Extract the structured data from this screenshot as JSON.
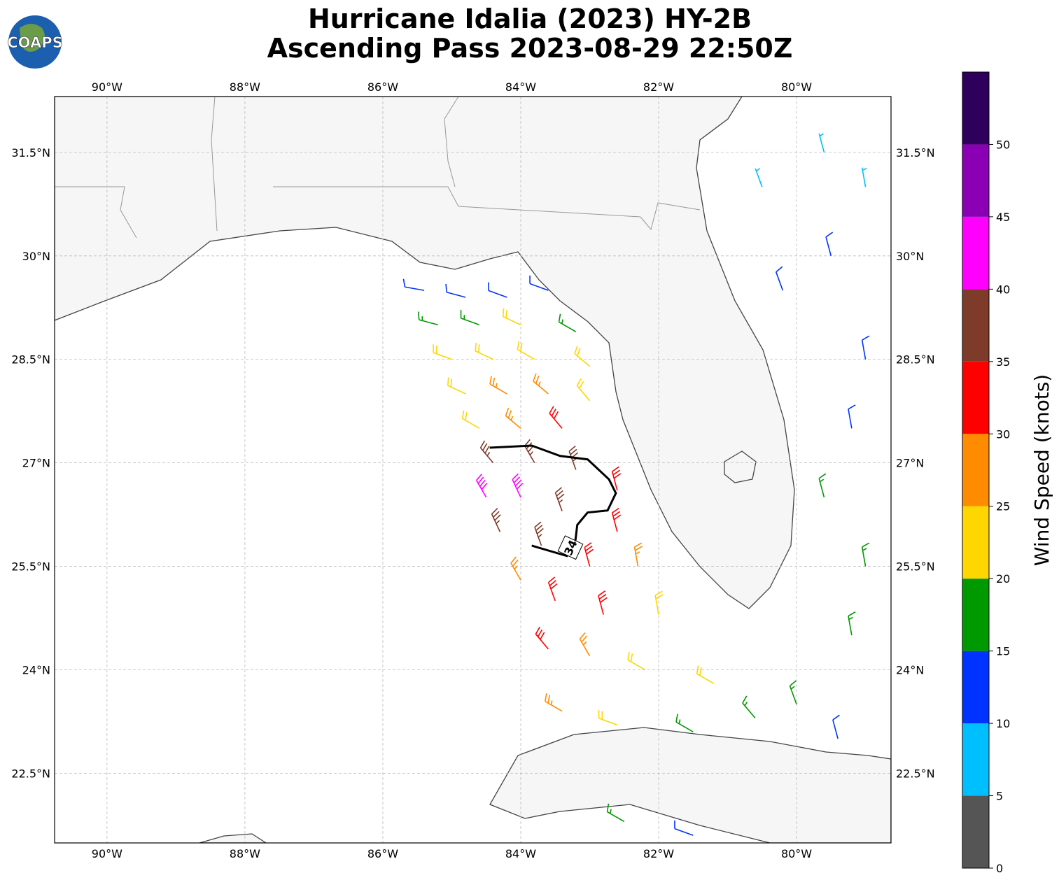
{
  "chart_data": {
    "type": "barbs",
    "title": "Hurricane Idalia (2023) HY-2B",
    "subtitle": "Ascending Pass 2023-08-29 22:50Z",
    "logo": "COAPS",
    "xlim": [
      -90.76,
      -78.63
    ],
    "ylim": [
      21.49,
      32.31
    ],
    "xticks": [
      {
        "value": -90,
        "label": "90°W"
      },
      {
        "value": -88,
        "label": "88°W"
      },
      {
        "value": -86,
        "label": "86°W"
      },
      {
        "value": -84,
        "label": "84°W"
      },
      {
        "value": -82,
        "label": "82°W"
      },
      {
        "value": -80,
        "label": "80°W"
      }
    ],
    "yticks": [
      {
        "value": 22.5,
        "label": "22.5°N"
      },
      {
        "value": 24,
        "label": "24°N"
      },
      {
        "value": 25.5,
        "label": "25.5°N"
      },
      {
        "value": 27,
        "label": "27°N"
      },
      {
        "value": 28.5,
        "label": "28.5°N"
      },
      {
        "value": 30,
        "label": "30°N"
      },
      {
        "value": 31.5,
        "label": "31.5°N"
      }
    ],
    "grid": true,
    "colorbar": {
      "label": "Wind Speed (knots)",
      "boundaries": [
        0,
        5,
        10,
        15,
        20,
        25,
        30,
        35,
        40,
        45,
        50,
        55
      ],
      "colors": [
        "#555555",
        "#00bfff",
        "#0033ff",
        "#009900",
        "#ffd700",
        "#ff8c00",
        "#ff0000",
        "#7f3b2a",
        "#ff00ff",
        "#8b00b5",
        "#2e005c"
      ],
      "ticks": [
        0,
        5,
        10,
        15,
        20,
        25,
        30,
        35,
        40,
        45,
        50
      ]
    },
    "contour": {
      "label": 34,
      "lon": [
        -84.45,
        -83.84,
        -83.43,
        -83.03,
        -82.72,
        -82.62,
        -82.74,
        -83.03,
        -83.18,
        -83.21,
        -83.33,
        -83.84
      ],
      "lat": [
        27.22,
        27.25,
        27.1,
        27.05,
        26.76,
        26.56,
        26.31,
        26.28,
        26.1,
        25.85,
        25.65,
        25.8
      ]
    },
    "barbs": {
      "lon": [
        -85.4,
        -84.8,
        -84.2,
        -83.6,
        -85.2,
        -84.6,
        -84.0,
        -83.2,
        -85.0,
        -84.4,
        -83.8,
        -83.0,
        -84.8,
        -84.2,
        -83.6,
        -83.0,
        -84.6,
        -84.0,
        -83.4,
        -84.4,
        -83.8,
        -83.2,
        -82.6,
        -84.5,
        -84.0,
        -83.4,
        -82.6,
        -84.3,
        -83.7,
        -83.0,
        -82.3,
        -84.0,
        -83.5,
        -82.8,
        -82.0,
        -83.6,
        -83.0,
        -82.2,
        -81.2,
        -83.4,
        -82.6,
        -81.5,
        -80.6,
        -80.0,
        -79.4,
        -79.2,
        -79.0,
        -79.6,
        -79.2,
        -79.0,
        -80.2,
        -79.5,
        -80.5,
        -79.6,
        -79.0,
        -82.5,
        -81.5
      ],
      "lat": [
        29.5,
        29.4,
        29.4,
        29.5,
        29.0,
        29.0,
        29.0,
        28.9,
        28.5,
        28.5,
        28.5,
        28.4,
        28.0,
        28.0,
        28.0,
        27.9,
        27.5,
        27.5,
        27.5,
        27.0,
        27.0,
        26.9,
        26.6,
        26.5,
        26.5,
        26.3,
        26.0,
        26.0,
        25.8,
        25.5,
        25.5,
        25.3,
        25.0,
        24.8,
        24.8,
        24.3,
        24.2,
        24.0,
        23.8,
        23.4,
        23.2,
        23.1,
        23.3,
        23.5,
        23.0,
        24.5,
        25.5,
        26.5,
        27.5,
        28.5,
        29.5,
        30.0,
        31.0,
        31.5,
        31.0,
        21.8,
        21.6
      ],
      "speed": [
        12,
        14,
        13,
        12,
        18,
        18,
        20,
        18,
        23,
        24,
        23,
        22,
        24,
        27,
        28,
        24,
        24,
        28,
        32,
        37,
        38,
        36,
        32,
        42,
        43,
        38,
        32,
        38,
        37,
        33,
        27,
        28,
        33,
        30,
        23,
        32,
        27,
        23,
        22,
        27,
        22,
        18,
        17,
        15,
        12,
        18,
        17,
        17,
        12,
        11,
        12,
        10,
        8,
        7,
        8,
        17,
        12
      ],
      "dir": [
        280,
        285,
        290,
        290,
        285,
        290,
        295,
        300,
        290,
        295,
        300,
        310,
        295,
        300,
        310,
        320,
        300,
        310,
        320,
        320,
        330,
        340,
        345,
        330,
        335,
        340,
        345,
        335,
        340,
        345,
        350,
        330,
        340,
        345,
        350,
        320,
        330,
        300,
        300,
        300,
        290,
        300,
        320,
        340,
        345,
        350,
        350,
        345,
        350,
        350,
        340,
        345,
        340,
        345,
        350,
        300,
        290
      ]
    }
  }
}
